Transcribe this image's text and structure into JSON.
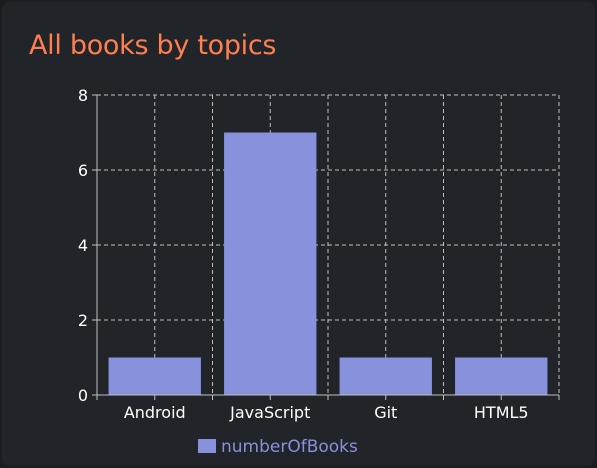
{
  "card": {
    "title": "All books by topics"
  },
  "colors": {
    "title": "#ff7f50",
    "bar": "#8891db",
    "grid": "#bfbfbf",
    "axis_text": "#ffffff",
    "legend_text": "#8891db"
  },
  "chart_data": {
    "type": "bar",
    "title": "",
    "xlabel": "",
    "ylabel": "",
    "categories": [
      "Android",
      "JavaScript",
      "Git",
      "HTML5"
    ],
    "series": [
      {
        "name": "numberOfBooks",
        "values": [
          1,
          7,
          1,
          1
        ]
      }
    ],
    "ylim": [
      0,
      8
    ],
    "yticks": [
      0,
      2,
      4,
      6,
      8
    ],
    "grid": true,
    "grid_style": "dashed",
    "legend_position": "bottom"
  }
}
